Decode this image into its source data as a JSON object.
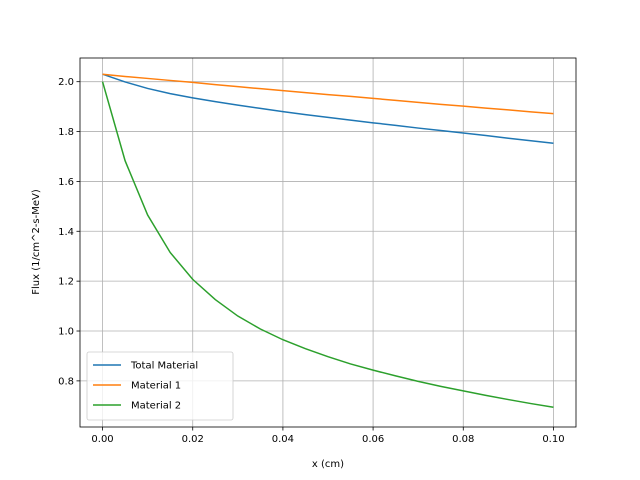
{
  "chart_data": {
    "type": "line",
    "title": "",
    "xlabel": "x (cm)",
    "ylabel": "Flux (1/cm^2-s-MeV)",
    "xlim": [
      -0.005,
      0.105
    ],
    "ylim": [
      0.615,
      2.095
    ],
    "xticks": [
      0.0,
      0.02,
      0.04,
      0.06,
      0.08,
      0.1
    ],
    "xtick_labels": [
      "0.00",
      "0.02",
      "0.04",
      "0.06",
      "0.08",
      "0.10"
    ],
    "yticks": [
      0.8,
      1.0,
      1.2,
      1.4,
      1.6,
      1.8,
      2.0
    ],
    "ytick_labels": [
      "0.8",
      "1.0",
      "1.2",
      "1.4",
      "1.6",
      "1.8",
      "2.0"
    ],
    "grid": true,
    "legend_position": "lower-left",
    "x": [
      0.0,
      0.005,
      0.01,
      0.015,
      0.02,
      0.025,
      0.03,
      0.035,
      0.04,
      0.045,
      0.05,
      0.055,
      0.06,
      0.065,
      0.07,
      0.075,
      0.08,
      0.085,
      0.09,
      0.095,
      0.1
    ],
    "series": [
      {
        "name": "Total Material",
        "color": "#1f77b4",
        "values": [
          2.03,
          1.999,
          1.973,
          1.952,
          1.935,
          1.92,
          1.906,
          1.893,
          1.88,
          1.868,
          1.857,
          1.846,
          1.835,
          1.825,
          1.814,
          1.804,
          1.794,
          1.784,
          1.773,
          1.763,
          1.753
        ]
      },
      {
        "name": "Material 1",
        "color": "#ff7f0e",
        "values": [
          2.03,
          2.021,
          2.013,
          2.005,
          1.997,
          1.988,
          1.98,
          1.972,
          1.964,
          1.956,
          1.948,
          1.941,
          1.933,
          1.925,
          1.917,
          1.909,
          1.902,
          1.894,
          1.887,
          1.879,
          1.872
        ]
      },
      {
        "name": "Material 2",
        "color": "#2ca02c",
        "values": [
          2.0,
          1.683,
          1.465,
          1.315,
          1.207,
          1.126,
          1.06,
          1.008,
          0.965,
          0.929,
          0.897,
          0.868,
          0.843,
          0.82,
          0.798,
          0.778,
          0.76,
          0.742,
          0.725,
          0.709,
          0.694
        ]
      }
    ]
  }
}
